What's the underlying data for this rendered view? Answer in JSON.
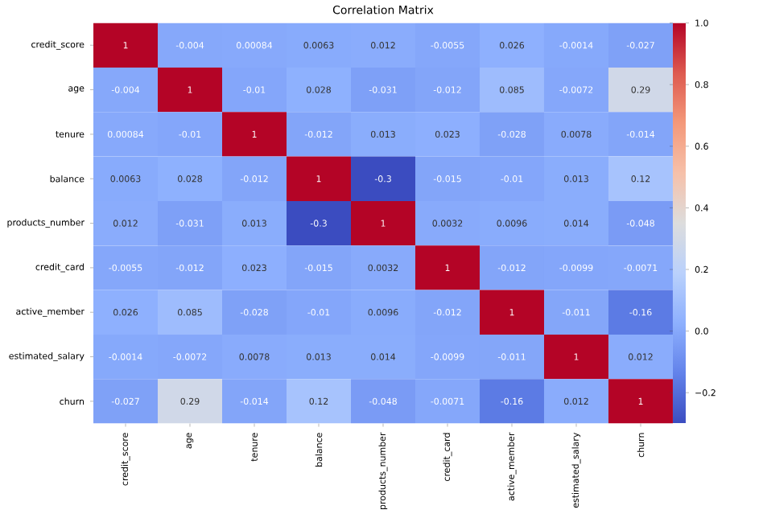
{
  "chart_data": {
    "type": "heatmap",
    "title": "Correlation Matrix",
    "categories": [
      "credit_score",
      "age",
      "tenure",
      "balance",
      "products_number",
      "credit_card",
      "active_member",
      "estimated_salary",
      "churn"
    ],
    "y_categories": [
      "credit_score",
      "age",
      "tenure",
      "balance",
      "products_number",
      "credit_card",
      "active_member",
      "estimated_salary",
      "churn"
    ],
    "cells": [
      [
        1,
        -0.004,
        0.00084,
        0.0063,
        0.012,
        -0.0055,
        0.026,
        -0.0014,
        -0.027
      ],
      [
        -0.004,
        1,
        -0.01,
        0.028,
        -0.031,
        -0.012,
        0.085,
        -0.0072,
        0.29
      ],
      [
        0.00084,
        -0.01,
        1,
        -0.012,
        0.013,
        0.023,
        -0.028,
        0.0078,
        -0.014
      ],
      [
        0.0063,
        0.028,
        -0.012,
        1,
        -0.3,
        -0.015,
        -0.01,
        0.013,
        0.12
      ],
      [
        0.012,
        -0.031,
        0.013,
        -0.3,
        1,
        0.0032,
        0.0096,
        0.014,
        -0.048
      ],
      [
        -0.0055,
        -0.012,
        0.023,
        -0.015,
        0.0032,
        1,
        -0.012,
        -0.0099,
        -0.0071
      ],
      [
        0.026,
        0.085,
        -0.028,
        -0.01,
        0.0096,
        -0.012,
        1,
        -0.011,
        -0.16
      ],
      [
        -0.0014,
        -0.0072,
        0.0078,
        0.013,
        0.014,
        -0.0099,
        -0.011,
        1,
        0.012
      ],
      [
        -0.027,
        0.29,
        -0.014,
        0.12,
        -0.048,
        -0.0071,
        -0.16,
        0.012,
        1
      ]
    ],
    "cell_labels": [
      [
        "1",
        "-0.004",
        "0.00084",
        "0.0063",
        "0.012",
        "-0.0055",
        "0.026",
        "-0.0014",
        "-0.027"
      ],
      [
        "-0.004",
        "1",
        "-0.01",
        "0.028",
        "-0.031",
        "-0.012",
        "0.085",
        "-0.0072",
        "0.29"
      ],
      [
        "0.00084",
        "-0.01",
        "1",
        "-0.012",
        "0.013",
        "0.023",
        "-0.028",
        "0.0078",
        "-0.014"
      ],
      [
        "0.0063",
        "0.028",
        "-0.012",
        "1",
        "-0.3",
        "-0.015",
        "-0.01",
        "0.013",
        "0.12"
      ],
      [
        "0.012",
        "-0.031",
        "0.013",
        "-0.3",
        "1",
        "0.0032",
        "0.0096",
        "0.014",
        "-0.048"
      ],
      [
        "-0.0055",
        "-0.012",
        "0.023",
        "-0.015",
        "0.0032",
        "1",
        "-0.012",
        "-0.0099",
        "-0.0071"
      ],
      [
        "0.026",
        "0.085",
        "-0.028",
        "-0.01",
        "0.0096",
        "-0.012",
        "1",
        "-0.011",
        "-0.16"
      ],
      [
        "-0.0014",
        "-0.0072",
        "0.0078",
        "0.013",
        "0.014",
        "-0.0099",
        "-0.011",
        "1",
        "0.012"
      ],
      [
        "-0.027",
        "0.29",
        "-0.014",
        "0.12",
        "-0.048",
        "-0.0071",
        "-0.16",
        "0.012",
        "1"
      ]
    ],
    "clim": [
      -0.3,
      1
    ],
    "cticks": [
      {
        "value": -0.2,
        "label": "−0.2"
      },
      {
        "value": 0,
        "label": "0.0"
      },
      {
        "value": 0.2,
        "label": "0.2"
      },
      {
        "value": 0.4,
        "label": "0.4"
      },
      {
        "value": 0.6,
        "label": "0.6"
      },
      {
        "value": 0.8,
        "label": "0.8"
      },
      {
        "value": 1,
        "label": "1.0"
      }
    ]
  }
}
